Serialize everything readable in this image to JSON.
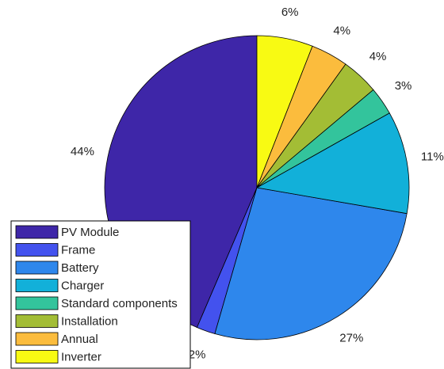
{
  "chart_data": {
    "type": "pie",
    "categories": [
      "PV Module",
      "Frame",
      "Battery",
      "Charger",
      "Standard components",
      "Installation",
      "Annual",
      "Inverter"
    ],
    "values": [
      44,
      2,
      27,
      11,
      3,
      4,
      4,
      6
    ],
    "value_labels": [
      "44%",
      "2%",
      "27%",
      "11%",
      "3%",
      "4%",
      "4%",
      "6%"
    ],
    "colors": [
      "#3e26a8",
      "#4352ee",
      "#2e87ec",
      "#12b0d9",
      "#33c49c",
      "#a3bd35",
      "#fbbc3d",
      "#f8fa13"
    ],
    "legend": "southwest"
  }
}
